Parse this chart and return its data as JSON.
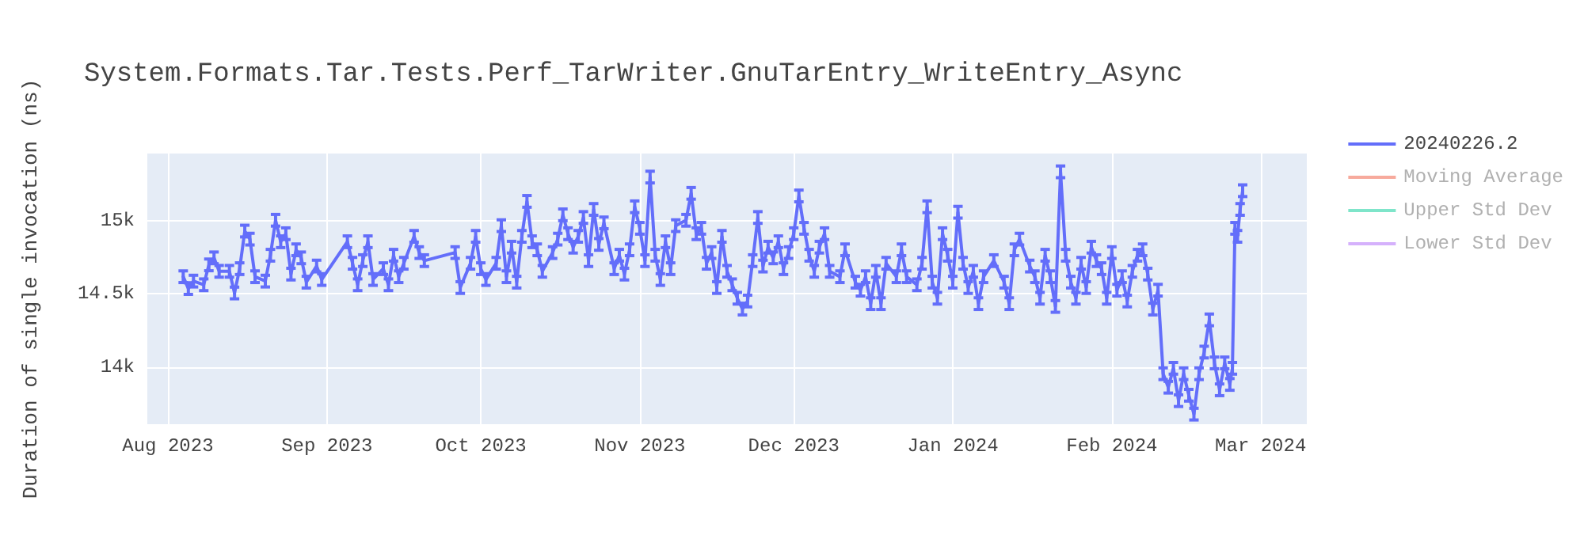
{
  "chart_data": {
    "type": "line",
    "title": "System.Formats.Tar.Tests.Perf_TarWriter.GnuTarEntry_WriteEntry_Async",
    "ylabel": "Duration of single invocation (ns)",
    "x": [
      "2023-08-04",
      "2023-08-05",
      "2023-08-06",
      "2023-08-08",
      "2023-08-09",
      "2023-08-10",
      "2023-08-11",
      "2023-08-13",
      "2023-08-14",
      "2023-08-15",
      "2023-08-16",
      "2023-08-17",
      "2023-08-18",
      "2023-08-20",
      "2023-08-21",
      "2023-08-22",
      "2023-08-23",
      "2023-08-24",
      "2023-08-25",
      "2023-08-26",
      "2023-08-27",
      "2023-08-28",
      "2023-08-30",
      "2023-08-31",
      "2023-09-05",
      "2023-09-06",
      "2023-09-07",
      "2023-09-08",
      "2023-09-09",
      "2023-09-10",
      "2023-09-12",
      "2023-09-13",
      "2023-09-14",
      "2023-09-15",
      "2023-09-16",
      "2023-09-18",
      "2023-09-19",
      "2023-09-20",
      "2023-09-26",
      "2023-09-27",
      "2023-09-29",
      "2023-09-30",
      "2023-10-01",
      "2023-10-02",
      "2023-10-04",
      "2023-10-05",
      "2023-10-06",
      "2023-10-07",
      "2023-10-08",
      "2023-10-09",
      "2023-10-10",
      "2023-10-11",
      "2023-10-12",
      "2023-10-13",
      "2023-10-15",
      "2023-10-16",
      "2023-10-17",
      "2023-10-18",
      "2023-10-19",
      "2023-10-20",
      "2023-10-21",
      "2023-10-22",
      "2023-10-23",
      "2023-10-24",
      "2023-10-25",
      "2023-10-27",
      "2023-10-28",
      "2023-10-29",
      "2023-10-30",
      "2023-10-31",
      "2023-11-01",
      "2023-11-02",
      "2023-11-03",
      "2023-11-04",
      "2023-11-05",
      "2023-11-06",
      "2023-11-07",
      "2023-11-08",
      "2023-11-10",
      "2023-11-11",
      "2023-11-12",
      "2023-11-13",
      "2023-11-14",
      "2023-11-15",
      "2023-11-16",
      "2023-11-17",
      "2023-11-18",
      "2023-11-19",
      "2023-11-20",
      "2023-11-21",
      "2023-11-22",
      "2023-11-23",
      "2023-11-24",
      "2023-11-25",
      "2023-11-26",
      "2023-11-27",
      "2023-11-28",
      "2023-11-29",
      "2023-11-30",
      "2023-12-01",
      "2023-12-02",
      "2023-12-03",
      "2023-12-04",
      "2023-12-05",
      "2023-12-06",
      "2023-12-07",
      "2023-12-08",
      "2023-12-10",
      "2023-12-11",
      "2023-12-13",
      "2023-12-14",
      "2023-12-15",
      "2023-12-16",
      "2023-12-17",
      "2023-12-18",
      "2023-12-19",
      "2023-12-21",
      "2023-12-22",
      "2023-12-23",
      "2023-12-25",
      "2023-12-26",
      "2023-12-27",
      "2023-12-28",
      "2023-12-29",
      "2023-12-30",
      "2023-12-31",
      "2024-01-01",
      "2024-01-02",
      "2024-01-03",
      "2024-01-04",
      "2024-01-05",
      "2024-01-06",
      "2024-01-07",
      "2024-01-09",
      "2024-01-11",
      "2024-01-12",
      "2024-01-13",
      "2024-01-14",
      "2024-01-16",
      "2024-01-17",
      "2024-01-18",
      "2024-01-19",
      "2024-01-20",
      "2024-01-21",
      "2024-01-22",
      "2024-01-23",
      "2024-01-24",
      "2024-01-25",
      "2024-01-26",
      "2024-01-27",
      "2024-01-28",
      "2024-01-29",
      "2024-01-30",
      "2024-01-31",
      "2024-02-01",
      "2024-02-02",
      "2024-02-03",
      "2024-02-04",
      "2024-02-05",
      "2024-02-06",
      "2024-02-07",
      "2024-02-08",
      "2024-02-09",
      "2024-02-10",
      "2024-02-11",
      "2024-02-12",
      "2024-02-13",
      "2024-02-14",
      "2024-02-15",
      "2024-02-16",
      "2024-02-17",
      "2024-02-18",
      "2024-02-19",
      "2024-02-20",
      "2024-02-21",
      "2024-02-22",
      "2024-02-23",
      "2024-02-24",
      "2024-02-24T12:00",
      "2024-02-25",
      "2024-02-25T12:00",
      "2024-02-26",
      "2024-02-26T12:00"
    ],
    "series": [
      {
        "name": "20240226.2",
        "color": "#636efa",
        "values": [
          14618,
          14537,
          14588,
          14563,
          14699,
          14747,
          14655,
          14655,
          14507,
          14673,
          14930,
          14875,
          14618,
          14588,
          14765,
          15004,
          14857,
          14912,
          14636,
          14802,
          14747,
          14581,
          14691,
          14599,
          14857,
          14710,
          14563,
          14728,
          14857,
          14599,
          14673,
          14563,
          14765,
          14618,
          14710,
          14894,
          14783,
          14728,
          14783,
          14544,
          14710,
          14894,
          14673,
          14599,
          14710,
          14967,
          14618,
          14820,
          14581,
          14894,
          15133,
          14857,
          14802,
          14655,
          14783,
          14875,
          15041,
          14912,
          14820,
          14894,
          15023,
          14728,
          15078,
          14839,
          14986,
          14673,
          14765,
          14636,
          14802,
          15096,
          14949,
          14728,
          15299,
          14765,
          14599,
          14857,
          14673,
          14967,
          15004,
          15188,
          14912,
          14949,
          14710,
          14783,
          14544,
          14894,
          14655,
          14563,
          14471,
          14397,
          14452,
          14728,
          15023,
          14691,
          14820,
          14747,
          14857,
          14673,
          14783,
          14912,
          15170,
          14949,
          14765,
          14655,
          14820,
          14912,
          14655,
          14618,
          14802,
          14581,
          14526,
          14618,
          14434,
          14655,
          14434,
          14710,
          14618,
          14802,
          14618,
          14563,
          14710,
          15096,
          14581,
          14471,
          14912,
          14765,
          14581,
          15059,
          14710,
          14544,
          14655,
          14434,
          14618,
          14728,
          14581,
          14434,
          14802,
          14875,
          14691,
          14618,
          14471,
          14765,
          14618,
          14415,
          15335,
          14765,
          14581,
          14471,
          14710,
          14544,
          14820,
          14728,
          14673,
          14471,
          14783,
          14526,
          14618,
          14452,
          14655,
          14765,
          14802,
          14636,
          14397,
          14526,
          13955,
          13863,
          13992,
          13771,
          13955,
          13808,
          13679,
          13955,
          14103,
          14323,
          14029,
          13845,
          14029,
          13882,
          13992,
          14949,
          14894,
          15078,
          15206
        ],
        "errors": [
          40,
          40,
          40,
          40,
          40,
          40,
          40,
          40,
          40,
          40,
          40,
          40,
          40,
          40,
          40,
          40,
          40,
          40,
          40,
          40,
          40,
          40,
          40,
          40,
          40,
          40,
          40,
          40,
          40,
          40,
          40,
          40,
          40,
          40,
          40,
          40,
          40,
          40,
          40,
          40,
          40,
          40,
          40,
          40,
          40,
          40,
          40,
          40,
          40,
          40,
          40,
          40,
          40,
          40,
          40,
          40,
          40,
          40,
          40,
          40,
          40,
          40,
          40,
          40,
          40,
          40,
          40,
          40,
          40,
          40,
          40,
          40,
          40,
          40,
          40,
          40,
          40,
          40,
          40,
          40,
          40,
          40,
          40,
          40,
          40,
          40,
          40,
          40,
          40,
          40,
          40,
          40,
          40,
          40,
          40,
          40,
          40,
          40,
          40,
          40,
          40,
          40,
          40,
          40,
          40,
          40,
          40,
          40,
          40,
          40,
          40,
          40,
          40,
          40,
          40,
          40,
          40,
          40,
          40,
          40,
          40,
          40,
          40,
          40,
          40,
          40,
          40,
          40,
          40,
          40,
          40,
          40,
          40,
          40,
          40,
          40,
          40,
          40,
          40,
          40,
          40,
          40,
          40,
          40,
          40,
          40,
          40,
          40,
          40,
          40,
          40,
          40,
          40,
          40,
          40,
          40,
          40,
          40,
          40,
          40,
          40,
          40,
          40,
          40,
          40,
          40,
          40,
          40,
          40,
          40,
          40,
          40,
          40,
          40,
          40,
          40,
          40,
          40,
          40,
          40,
          40,
          40,
          40
        ]
      },
      {
        "name": "Moving Average",
        "color": "#ef553b",
        "values": [
          null,
          null,
          null,
          null,
          null,
          null,
          null,
          null,
          null,
          null,
          null,
          null,
          null,
          null,
          null,
          null,
          null,
          null,
          null,
          null,
          null,
          null,
          null,
          null,
          null,
          null,
          null,
          null,
          null,
          null,
          null,
          null,
          null,
          null,
          null,
          null,
          null,
          null,
          null,
          null,
          null,
          null,
          null,
          null,
          null,
          null,
          null,
          null,
          null,
          null,
          null,
          null,
          null,
          null,
          null,
          null,
          null,
          null,
          null,
          null,
          null,
          null,
          null,
          null,
          null,
          null,
          null,
          null,
          null,
          null,
          null,
          null,
          null,
          null,
          null,
          null,
          null,
          null,
          null,
          null,
          null,
          null,
          null,
          null,
          null,
          null,
          null,
          null,
          null,
          null,
          null,
          null,
          null,
          null,
          null,
          null,
          null,
          null,
          null,
          null,
          null,
          null,
          null,
          null,
          null,
          null,
          null,
          null,
          null,
          null,
          null,
          null,
          null,
          null,
          null,
          null,
          null,
          null,
          null,
          null,
          null,
          null,
          null,
          null,
          null,
          null,
          null,
          null,
          null,
          null,
          null,
          null,
          null,
          null,
          null,
          null,
          null,
          null,
          null,
          null,
          null,
          null,
          null,
          null,
          null,
          null,
          null,
          null,
          null,
          null,
          null,
          null,
          null,
          null,
          null,
          null,
          null,
          null,
          null,
          null,
          null,
          null,
          null,
          null,
          null,
          null,
          null,
          null,
          null,
          null,
          null,
          null,
          null,
          null,
          null,
          null,
          null,
          null,
          null,
          null,
          null,
          null,
          null
        ]
      },
      {
        "name": "Upper Std Dev",
        "color": "#00cc96",
        "values": [
          null,
          null,
          null,
          null,
          null,
          null,
          null,
          null,
          null,
          null,
          null,
          null,
          null,
          null,
          null,
          null,
          null,
          null,
          null,
          null,
          null,
          null,
          null,
          null,
          null,
          null,
          null,
          null,
          null,
          null,
          null,
          null,
          null,
          null,
          null,
          null,
          null,
          null,
          null,
          null,
          null,
          null,
          null,
          null,
          null,
          null,
          null,
          null,
          null,
          null,
          null,
          null,
          null,
          null,
          null,
          null,
          null,
          null,
          null,
          null,
          null,
          null,
          null,
          null,
          null,
          null,
          null,
          null,
          null,
          null,
          null,
          null,
          null,
          null,
          null,
          null,
          null,
          null,
          null,
          null,
          null,
          null,
          null,
          null,
          null,
          null,
          null,
          null,
          null,
          null,
          null,
          null,
          null,
          null,
          null,
          null,
          null,
          null,
          null,
          null,
          null,
          null,
          null,
          null,
          null,
          null,
          null,
          null,
          null,
          null,
          null,
          null,
          null,
          null,
          null,
          null,
          null,
          null,
          null,
          null,
          null,
          null,
          null,
          null,
          null,
          null,
          null,
          null,
          null,
          null,
          null,
          null,
          null,
          null,
          null,
          null,
          null,
          null,
          null,
          null,
          null,
          null,
          null,
          null,
          null,
          null,
          null,
          null,
          null,
          null,
          null,
          null,
          null,
          null,
          null,
          null,
          null,
          null,
          null,
          null,
          null,
          null,
          null,
          null,
          null,
          null,
          null,
          null,
          null,
          null,
          null,
          null,
          null,
          null,
          null,
          null,
          null,
          null,
          null,
          null,
          null,
          null,
          null
        ]
      },
      {
        "name": "Lower Std Dev",
        "color": "#ab63fa",
        "values": [
          null,
          null,
          null,
          null,
          null,
          null,
          null,
          null,
          null,
          null,
          null,
          null,
          null,
          null,
          null,
          null,
          null,
          null,
          null,
          null,
          null,
          null,
          null,
          null,
          null,
          null,
          null,
          null,
          null,
          null,
          null,
          null,
          null,
          null,
          null,
          null,
          null,
          null,
          null,
          null,
          null,
          null,
          null,
          null,
          null,
          null,
          null,
          null,
          null,
          null,
          null,
          null,
          null,
          null,
          null,
          null,
          null,
          null,
          null,
          null,
          null,
          null,
          null,
          null,
          null,
          null,
          null,
          null,
          null,
          null,
          null,
          null,
          null,
          null,
          null,
          null,
          null,
          null,
          null,
          null,
          null,
          null,
          null,
          null,
          null,
          null,
          null,
          null,
          null,
          null,
          null,
          null,
          null,
          null,
          null,
          null,
          null,
          null,
          null,
          null,
          null,
          null,
          null,
          null,
          null,
          null,
          null,
          null,
          null,
          null,
          null,
          null,
          null,
          null,
          null,
          null,
          null,
          null,
          null,
          null,
          null,
          null,
          null,
          null,
          null,
          null,
          null,
          null,
          null,
          null,
          null,
          null,
          null,
          null,
          null,
          null,
          null,
          null,
          null,
          null,
          null,
          null,
          null,
          null,
          null,
          null,
          null,
          null,
          null,
          null,
          null,
          null,
          null,
          null,
          null,
          null,
          null,
          null,
          null,
          null,
          null,
          null,
          null,
          null,
          null,
          null,
          null,
          null,
          null,
          null,
          null,
          null,
          null,
          null,
          null,
          null,
          null,
          null,
          null,
          null,
          null,
          null,
          null
        ]
      }
    ],
    "xlim": [
      "2023-07-28",
      "2024-03-10"
    ],
    "xticks": [
      {
        "value": "2023-08-01",
        "label": "Aug 2023"
      },
      {
        "value": "2023-09-01",
        "label": "Sep 2023"
      },
      {
        "value": "2023-10-01",
        "label": "Oct 2023"
      },
      {
        "value": "2023-11-01",
        "label": "Nov 2023"
      },
      {
        "value": "2023-12-01",
        "label": "Dec 2023"
      },
      {
        "value": "2024-01-01",
        "label": "Jan 2024"
      },
      {
        "value": "2024-02-01",
        "label": "Feb 2024"
      },
      {
        "value": "2024-03-01",
        "label": "Mar 2024"
      }
    ],
    "ylim": [
      13610,
      15460
    ],
    "yticks": [
      {
        "value": 14000,
        "label": "14k"
      },
      {
        "value": 14500,
        "label": "14.5k"
      },
      {
        "value": 15000,
        "label": "15k"
      }
    ],
    "grid": true,
    "legend": "top right",
    "line_style": "solid"
  }
}
